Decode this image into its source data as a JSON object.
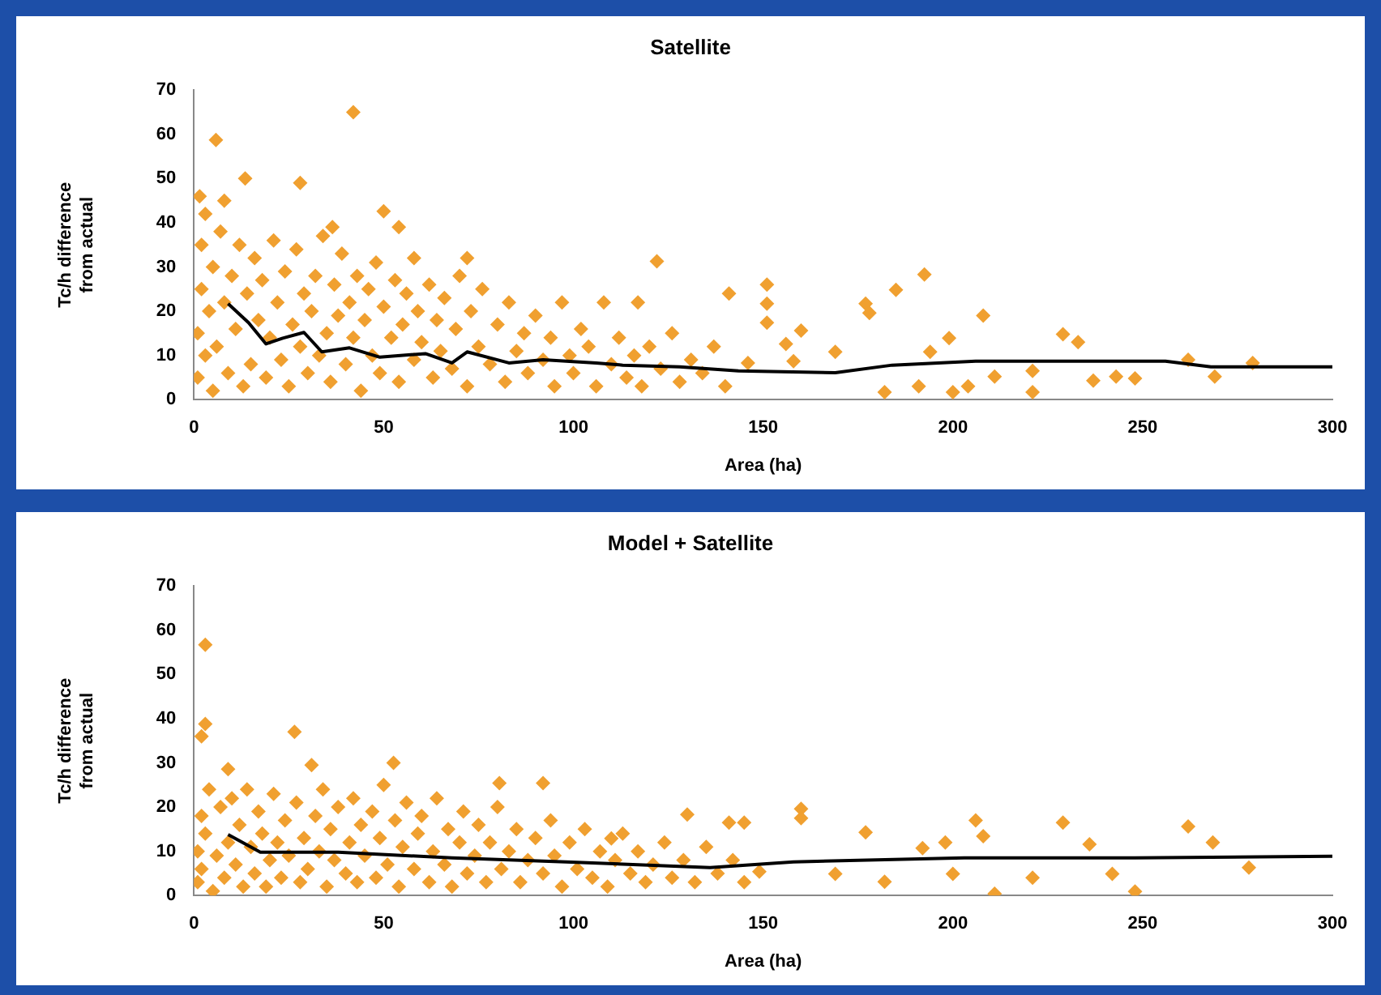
{
  "chart_data": [
    {
      "type": "scatter",
      "title": "Satellite",
      "xlabel": "Area (ha)",
      "ylabel": "Tc/h difference from actual",
      "xlim": [
        0,
        300
      ],
      "xticks": [
        0,
        50,
        100,
        150,
        200,
        250,
        300
      ],
      "ylim": [
        0,
        70
      ],
      "yticks": [
        0,
        10,
        20,
        30,
        40,
        50,
        60,
        70
      ],
      "grid": false,
      "legend": false,
      "series": [
        {
          "marker": "diamond",
          "color": "#f0a030",
          "x": [
            1,
            1,
            2,
            2,
            3,
            3,
            4,
            5,
            5,
            6,
            7,
            8,
            8,
            9,
            10,
            11,
            12,
            13,
            14,
            15,
            16,
            17,
            18,
            19,
            20,
            21,
            22,
            23,
            24,
            25,
            26,
            27,
            28,
            29,
            30,
            31,
            32,
            33,
            34,
            35,
            36,
            37,
            38,
            39,
            40,
            41,
            42,
            43,
            44,
            45,
            46,
            47,
            48,
            49,
            50,
            52,
            53,
            54,
            55,
            56,
            58,
            59,
            60,
            62,
            63,
            64,
            65,
            66,
            68,
            69,
            70,
            72,
            73,
            75,
            76,
            78,
            80,
            82,
            83,
            85,
            87,
            88,
            90,
            92,
            94,
            95,
            97,
            99,
            100,
            102,
            104,
            106,
            108,
            110,
            112,
            114,
            116,
            118,
            120,
            123,
            126,
            128,
            131,
            134,
            137,
            140,
            5.8,
            42,
            13.5,
            28,
            50,
            1.5,
            36.5,
            54,
            58,
            72,
            122,
            117,
            141,
            151,
            151,
            151,
            156,
            160,
            169,
            177,
            178,
            185,
            192.5,
            199,
            208,
            194,
            182,
            191,
            200,
            204,
            211,
            221,
            221,
            229,
            233,
            237,
            243,
            248,
            262,
            269,
            279,
            146,
            158
          ],
          "values": [
            5,
            15,
            25,
            35,
            10,
            42,
            20,
            30,
            2,
            12,
            38,
            22,
            45,
            6,
            28,
            16,
            35,
            3,
            24,
            8,
            32,
            18,
            27,
            5,
            14,
            36,
            22,
            9,
            29,
            3,
            17,
            34,
            12,
            24,
            6,
            20,
            28,
            10,
            37,
            15,
            4,
            26,
            19,
            33,
            8,
            22,
            14,
            28,
            2,
            18,
            25,
            10,
            31,
            6,
            21,
            14,
            27,
            4,
            17,
            24,
            9,
            20,
            13,
            26,
            5,
            18,
            11,
            23,
            7,
            16,
            28,
            3,
            20,
            12,
            25,
            8,
            17,
            4,
            22,
            11,
            15,
            6,
            19,
            9,
            14,
            3,
            22,
            10,
            6,
            16,
            12,
            3,
            22,
            8,
            14,
            5,
            10,
            3,
            12,
            7,
            15,
            4,
            9,
            6,
            12,
            3,
            58.7,
            65,
            50,
            49,
            42.6,
            46,
            39,
            39,
            32,
            32,
            31.3,
            22,
            24,
            26,
            21.7,
            17.4,
            12.6,
            15.6,
            10.8,
            21.7,
            19.6,
            24.8,
            28.3,
            13.9,
            19,
            10.8,
            1.7,
            3,
            1.7,
            3,
            5.2,
            6.5,
            1.7,
            14.8,
            13,
            4.3,
            5.2,
            4.8,
            9,
            5.2,
            8.3,
            8.3,
            8.7
          ]
        },
        {
          "type": "line",
          "marker": "none",
          "color": "#000000",
          "x": [
            9,
            14.4,
            19,
            23.4,
            29,
            33.7,
            41,
            49,
            61,
            68,
            72,
            83,
            92,
            106,
            113,
            128,
            143.5,
            169,
            184,
            206,
            233,
            256,
            268,
            300
          ],
          "values": [
            21.7,
            17.4,
            12.6,
            13.9,
            15.2,
            10.8,
            11.7,
            9.6,
            10.4,
            8.3,
            10.8,
            8.3,
            9,
            8.3,
            7.8,
            7.4,
            6.5,
            6.1,
            7.8,
            8.7,
            8.7,
            8.7,
            7.4,
            7.4
          ]
        }
      ]
    },
    {
      "type": "scatter",
      "title": "Model + Satellite",
      "xlabel": "Area (ha)",
      "ylabel": "Tc/h difference from actual",
      "xlim": [
        0,
        300
      ],
      "xticks": [
        0,
        50,
        100,
        150,
        200,
        250,
        300
      ],
      "ylim": [
        0,
        70
      ],
      "yticks": [
        0,
        10,
        20,
        30,
        40,
        50,
        60,
        70
      ],
      "grid": false,
      "legend": false,
      "series": [
        {
          "marker": "diamond",
          "color": "#f0a030",
          "x": [
            1,
            1,
            2,
            2,
            3,
            4,
            5,
            6,
            7,
            8,
            9,
            10,
            11,
            12,
            13,
            14,
            15,
            16,
            17,
            18,
            19,
            20,
            21,
            22,
            23,
            24,
            25,
            27,
            28,
            29,
            30,
            32,
            33,
            34,
            35,
            36,
            37,
            38,
            40,
            41,
            42,
            43,
            44,
            45,
            47,
            48,
            49,
            50,
            51,
            53,
            54,
            55,
            56,
            58,
            59,
            60,
            62,
            63,
            64,
            66,
            67,
            68,
            70,
            71,
            72,
            74,
            75,
            77,
            78,
            80,
            81,
            83,
            85,
            86,
            88,
            90,
            92,
            94,
            95,
            97,
            99,
            101,
            103,
            105,
            107,
            109,
            111,
            113,
            115,
            117,
            119,
            121,
            124,
            126,
            129,
            132,
            135,
            138,
            142,
            145,
            3,
            3,
            2,
            26.5,
            52.6,
            80.5,
            92,
            130,
            9,
            31,
            110,
            160,
            160,
            141,
            145,
            177,
            206,
            208,
            229,
            236,
            262,
            268.5,
            278,
            248,
            211,
            221,
            182,
            200,
            242,
            192,
            198,
            149,
            169
          ],
          "values": [
            3,
            10,
            18,
            6,
            14,
            24,
            1,
            9,
            20,
            4,
            12,
            22,
            7,
            16,
            2,
            24,
            11,
            5,
            19,
            14,
            2,
            8,
            23,
            12,
            4,
            17,
            9,
            21,
            3,
            13,
            6,
            18,
            10,
            24,
            2,
            15,
            8,
            20,
            5,
            12,
            22,
            3,
            16,
            9,
            19,
            4,
            13,
            25,
            7,
            17,
            2,
            11,
            21,
            6,
            14,
            18,
            3,
            10,
            22,
            7,
            15,
            2,
            12,
            19,
            5,
            9,
            16,
            3,
            12,
            20,
            6,
            10,
            15,
            3,
            8,
            13,
            5,
            17,
            9,
            2,
            12,
            6,
            15,
            4,
            10,
            2,
            8,
            14,
            5,
            10,
            3,
            7,
            12,
            4,
            8,
            3,
            11,
            5,
            8,
            3,
            56.7,
            38.8,
            36,
            37,
            30,
            25.4,
            25.4,
            18.3,
            28.6,
            29.5,
            12.9,
            19.6,
            17.5,
            16.5,
            16.5,
            14.3,
            17,
            13.4,
            16.5,
            11.6,
            15.6,
            12,
            6.3,
            0.9,
            0.4,
            4,
            3.1,
            4.9,
            4.9,
            10.7,
            12,
            5.4,
            4.9
          ]
        },
        {
          "type": "line",
          "marker": "none",
          "color": "#000000",
          "x": [
            9,
            17.5,
            38,
            68,
            98,
            136,
            158,
            203,
            248,
            300
          ],
          "values": [
            13.8,
            9.8,
            9.8,
            8.5,
            7.6,
            6.3,
            7.6,
            8.5,
            8.5,
            8.9
          ]
        }
      ]
    }
  ]
}
